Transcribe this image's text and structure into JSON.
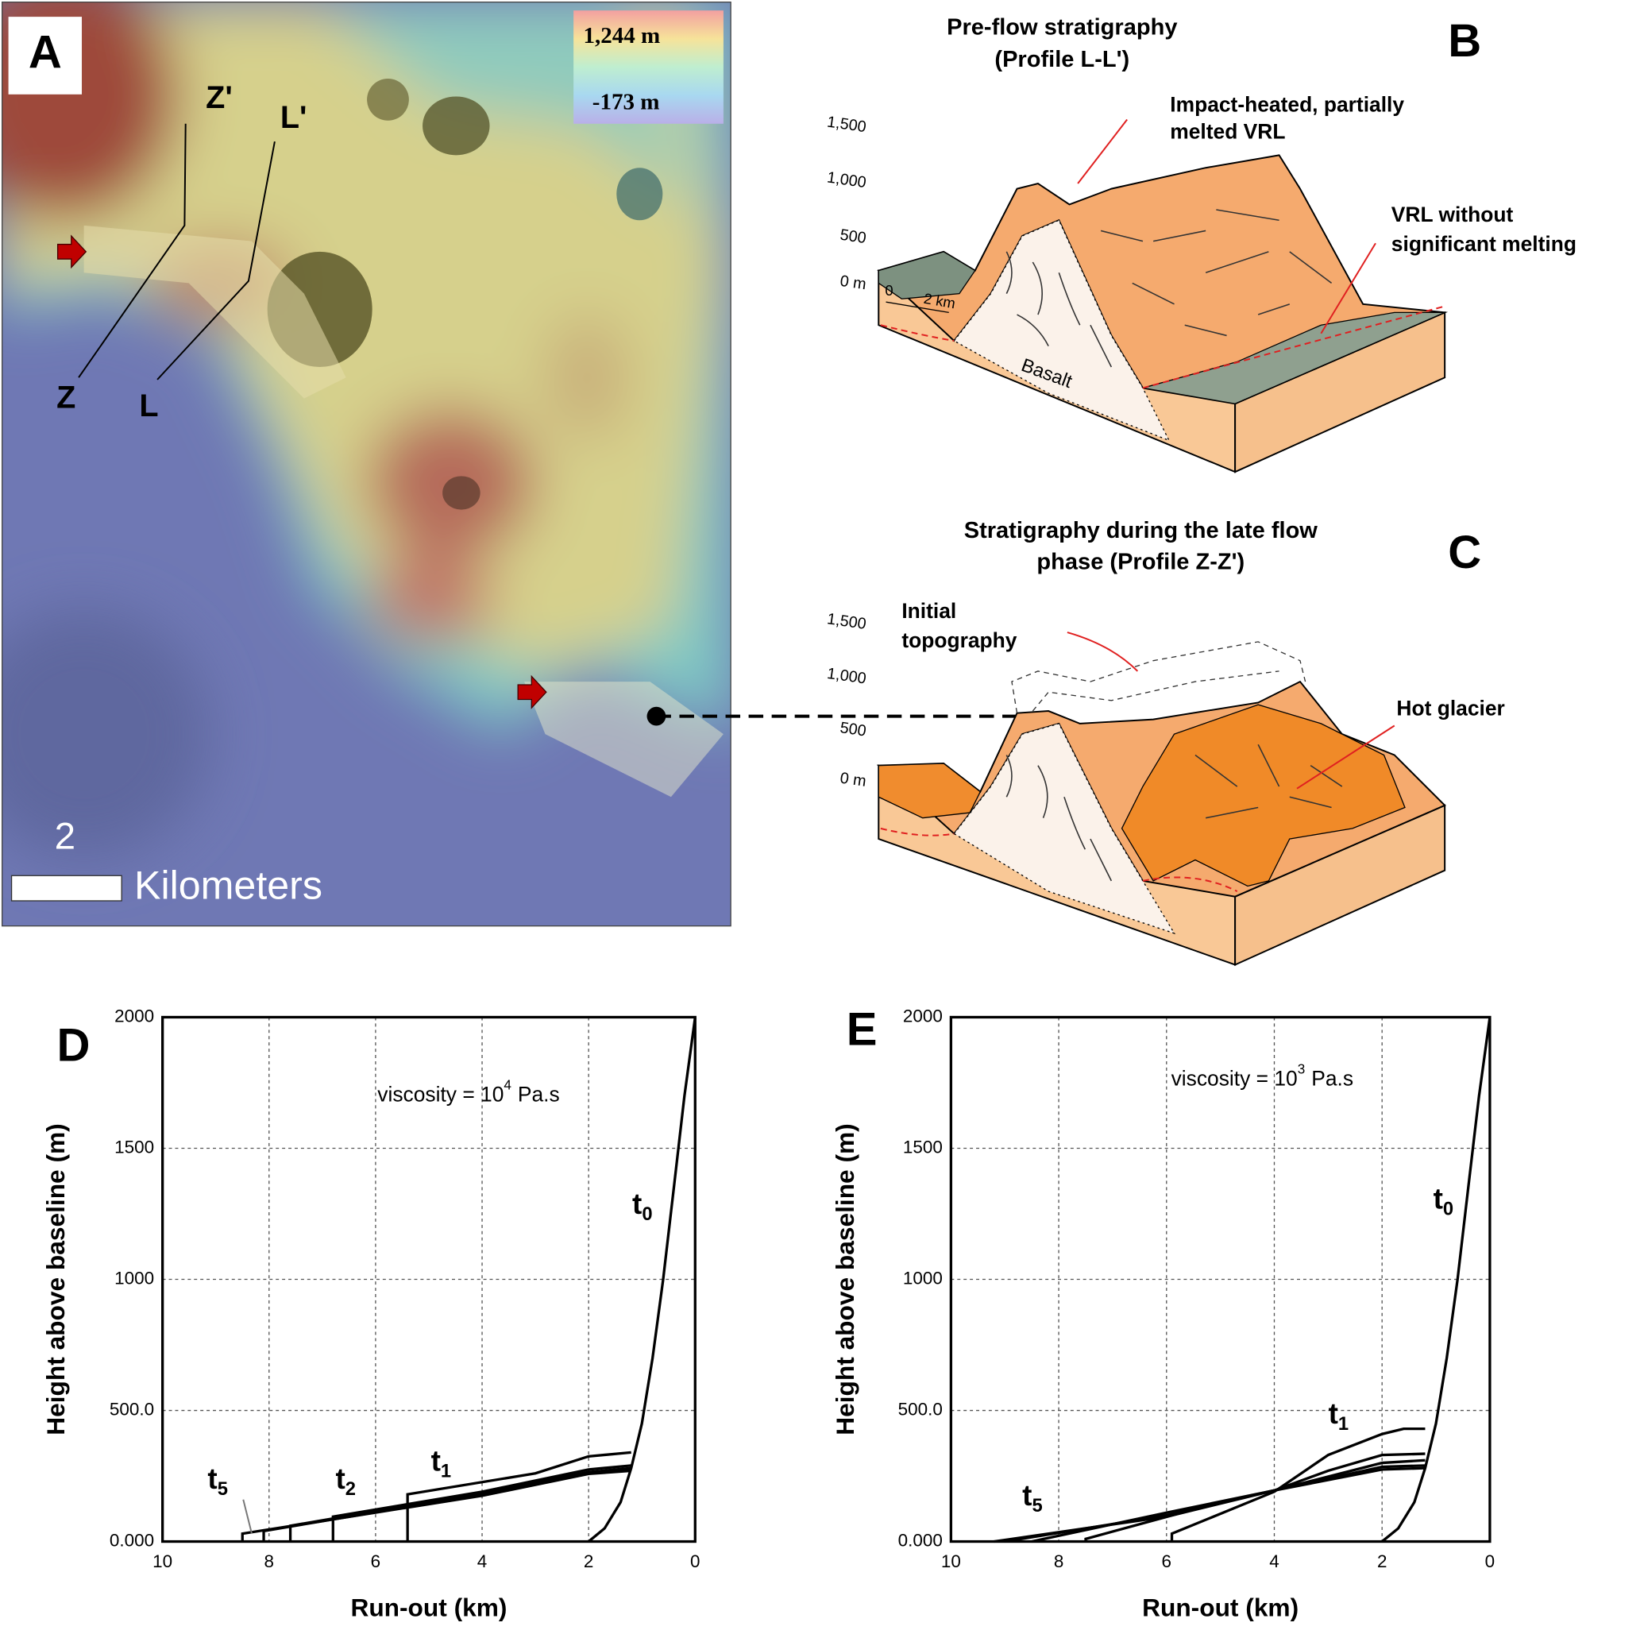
{
  "panel_a": {
    "label": "A",
    "legend_max": "1,244 m",
    "legend_min": "-173 m",
    "profile_labels": [
      "Z'",
      "L'",
      "Z",
      "L"
    ],
    "scale_value": "2",
    "scale_unit": "Kilometers"
  },
  "panel_b": {
    "label": "B",
    "title": [
      "Pre-flow stratigraphy",
      "(Profile L-L')"
    ],
    "elevation_labels": [
      "1,500",
      "1,000",
      "500",
      "0 m"
    ],
    "scale_bar": [
      "0",
      "2 km"
    ],
    "annotations": [
      "Impact-heated, partially",
      "melted VRL",
      "VRL without",
      "significant melting",
      "Basalt"
    ]
  },
  "panel_c": {
    "label": "C",
    "title": [
      "Stratigraphy during the late flow",
      "phase (Profile Z-Z')"
    ],
    "elevation_labels": [
      "1,500",
      "1,000",
      "500",
      "0 m"
    ],
    "annotations": [
      "Initial",
      "topography",
      "Hot glacier"
    ]
  },
  "chart_data": [
    {
      "type": "line",
      "panel_label": "D",
      "xlabel": "Run-out (km)",
      "ylabel": "Height above baseline (m)",
      "xlim": [
        10,
        0
      ],
      "ylim": [
        0,
        2000
      ],
      "xticks": [
        10,
        8,
        6,
        4,
        2,
        0
      ],
      "yticks": [
        {
          "value": 0,
          "label": "0.000"
        },
        {
          "value": 500,
          "label": "500.0"
        },
        1000,
        1500,
        2000
      ],
      "grid": true,
      "annotation": {
        "text": "viscosity = 10",
        "superscript": "4",
        "unit": "Pa.s"
      },
      "curve_labels": [
        {
          "text": "t",
          "subscript": "0"
        },
        {
          "text": "t",
          "subscript": "1"
        },
        {
          "text": "t",
          "subscript": "2"
        },
        {
          "text": "t",
          "subscript": "5"
        }
      ],
      "series": [
        {
          "color": "#000000",
          "x": [
            2,
            1.7,
            1.4,
            1.2,
            1,
            0.8,
            0.6,
            0.4,
            0.2,
            0
          ],
          "values": [
            0,
            50,
            150,
            280,
            450,
            700,
            1000,
            1350,
            1700,
            2000
          ]
        },
        {
          "color": "#000000",
          "x": [
            5.4,
            5.4,
            3,
            2,
            1.2
          ],
          "values": [
            0,
            180,
            260,
            325,
            340
          ]
        },
        {
          "color": "#000000",
          "x": [
            6.8,
            6.8,
            4,
            2,
            1.2
          ],
          "values": [
            0,
            95,
            190,
            275,
            290
          ]
        },
        {
          "color": "#000000",
          "x": [
            7.6,
            7.6,
            4,
            2,
            1.2
          ],
          "values": [
            0,
            60,
            185,
            265,
            280
          ]
        },
        {
          "color": "#000000",
          "x": [
            8.1,
            8.1,
            4,
            2,
            1.2
          ],
          "values": [
            0,
            40,
            180,
            262,
            275
          ]
        },
        {
          "color": "#000000",
          "x": [
            8.5,
            8.5,
            4,
            2,
            1.2
          ],
          "values": [
            0,
            30,
            175,
            258,
            270
          ]
        }
      ]
    },
    {
      "type": "line",
      "panel_label": "E",
      "xlabel": "Run-out (km)",
      "ylabel": "Height above baseline (m)",
      "xlim": [
        10,
        0
      ],
      "ylim": [
        0,
        2000
      ],
      "xticks": [
        10,
        8,
        6,
        4,
        2,
        0
      ],
      "yticks": [
        {
          "value": 0,
          "label": "0.000"
        },
        {
          "value": 500,
          "label": "500.0"
        },
        1000,
        1500,
        2000
      ],
      "grid": true,
      "annotation": {
        "text": "viscosity = 10",
        "superscript": "3",
        "unit": "Pa.s"
      },
      "curve_labels": [
        {
          "text": "t",
          "subscript": "0"
        },
        {
          "text": "t",
          "subscript": "1"
        },
        {
          "text": "t",
          "subscript": "5"
        }
      ],
      "series": [
        {
          "color": "#000000",
          "x": [
            2,
            1.7,
            1.4,
            1.2,
            1,
            0.8,
            0.6,
            0.4,
            0.2,
            0
          ],
          "values": [
            0,
            50,
            150,
            280,
            450,
            700,
            1000,
            1350,
            1700,
            2000
          ]
        },
        {
          "color": "#000000",
          "x": [
            5.9,
            5.9,
            4,
            3,
            2,
            1.6,
            1.2
          ],
          "values": [
            0,
            30,
            190,
            330,
            410,
            430,
            430
          ]
        },
        {
          "color": "#000000",
          "x": [
            7.5,
            7.5,
            5,
            4,
            3,
            2,
            1.2
          ],
          "values": [
            0,
            10,
            150,
            195,
            270,
            330,
            335
          ]
        },
        {
          "color": "#000000",
          "x": [
            8.5,
            6,
            4,
            2,
            1.2
          ],
          "values": [
            0,
            110,
            195,
            300,
            310
          ]
        },
        {
          "color": "#000000",
          "x": [
            9,
            6,
            4,
            2,
            1.2
          ],
          "values": [
            0,
            100,
            195,
            285,
            290
          ]
        },
        {
          "color": "#000000",
          "x": [
            9.2,
            6,
            4,
            2,
            1.2
          ],
          "values": [
            0,
            95,
            195,
            275,
            280
          ]
        }
      ]
    }
  ]
}
